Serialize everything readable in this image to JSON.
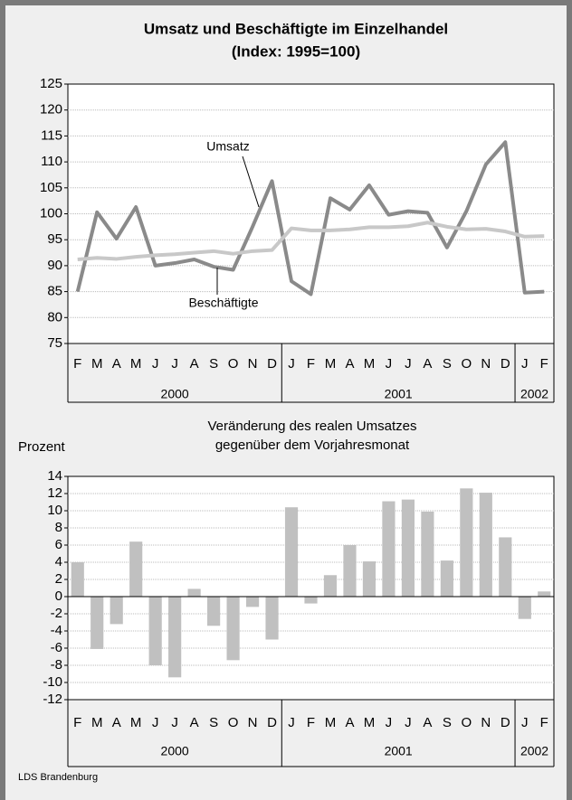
{
  "chart_data": [
    {
      "type": "line",
      "title": "Umsatz und Beschäftigte im Einzelhandel",
      "subtitle": "(Index: 1995=100)",
      "groups": [
        {
          "label": "2000",
          "categories": [
            "F",
            "M",
            "A",
            "M",
            "J",
            "J",
            "A",
            "S",
            "O",
            "N",
            "D"
          ]
        },
        {
          "label": "2001",
          "categories": [
            "J",
            "F",
            "M",
            "A",
            "M",
            "J",
            "J",
            "A",
            "S",
            "O",
            "N",
            "D"
          ]
        },
        {
          "label": "2002",
          "categories": [
            "J",
            "F"
          ]
        }
      ],
      "series": [
        {
          "name": "Umsatz",
          "color": "#8a8a8a",
          "values": [
            85,
            100.3,
            95.2,
            101.3,
            90,
            90.5,
            91.2,
            89.8,
            89.2,
            97.5,
            106.3,
            87,
            84.5,
            103,
            100.8,
            105.5,
            99.8,
            100.5,
            100.2,
            93.5,
            100.5,
            109.5,
            113.8,
            84.8,
            85
          ]
        },
        {
          "name": "Beschäftigte",
          "color": "#c8c8c8",
          "values": [
            91.2,
            91.5,
            91.3,
            91.7,
            92,
            92.2,
            92.5,
            92.8,
            92.3,
            92.8,
            93,
            97.2,
            96.8,
            96.8,
            97,
            97.4,
            97.4,
            97.6,
            98.3,
            97.5,
            97,
            97.1,
            96.6,
            95.6,
            95.7
          ]
        }
      ],
      "ylim": [
        75,
        125
      ],
      "yticks": [
        75,
        80,
        85,
        90,
        95,
        100,
        105,
        110,
        115,
        120,
        125
      ],
      "grid": true
    },
    {
      "type": "bar",
      "title": "Veränderung des realen Umsatzes",
      "subtitle": "gegenüber dem Vorjahresmonat",
      "ylabel": "Prozent",
      "groups": [
        {
          "label": "2000",
          "categories": [
            "F",
            "M",
            "A",
            "M",
            "J",
            "J",
            "A",
            "S",
            "O",
            "N",
            "D"
          ]
        },
        {
          "label": "2001",
          "categories": [
            "J",
            "F",
            "M",
            "A",
            "M",
            "J",
            "J",
            "A",
            "S",
            "O",
            "N",
            "D"
          ]
        },
        {
          "label": "2002",
          "categories": [
            "J",
            "F"
          ]
        }
      ],
      "values": [
        4,
        -6.1,
        -3.2,
        6.4,
        -8,
        -9.4,
        0.9,
        -3.4,
        -7.4,
        -1.2,
        -5,
        10.4,
        -0.8,
        2.5,
        6,
        4.1,
        11.1,
        11.3,
        9.9,
        4.2,
        12.6,
        12.1,
        6.9,
        -2.6,
        0.6
      ],
      "color": "#c0c0c0",
      "ylim": [
        -12,
        14
      ],
      "yticks": [
        -12,
        -10,
        -8,
        -6,
        -4,
        -2,
        0,
        2,
        4,
        6,
        8,
        10,
        12,
        14
      ],
      "grid": true
    }
  ],
  "source": "LDS Brandenburg"
}
